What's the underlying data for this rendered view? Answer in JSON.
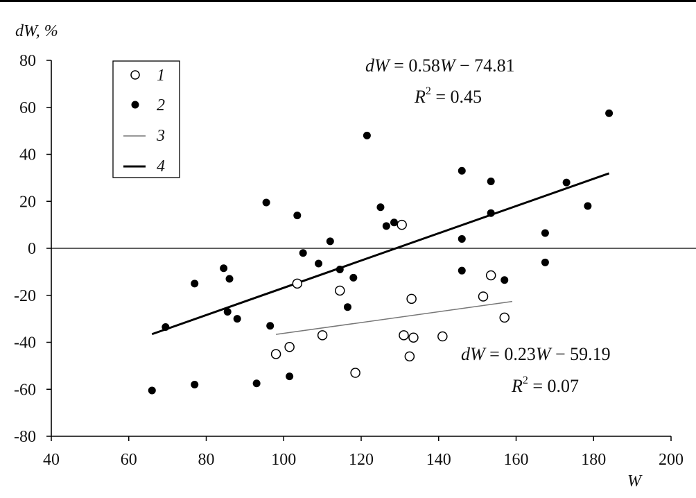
{
  "chart_data": {
    "type": "scatter",
    "xlabel": "W",
    "ylabel": "dW, %",
    "xlim": [
      40,
      200
    ],
    "ylim": [
      -80,
      80
    ],
    "x_ticks": [
      40,
      60,
      80,
      100,
      120,
      140,
      160,
      180,
      200
    ],
    "y_ticks": [
      -80,
      -60,
      -40,
      -20,
      0,
      20,
      40,
      60,
      80
    ],
    "grid": false,
    "legend_position": "top-left",
    "zero_line": true,
    "legend": [
      {
        "key": "1",
        "label": "1",
        "marker": "open-circle"
      },
      {
        "key": "2",
        "label": "2",
        "marker": "filled-circle"
      },
      {
        "key": "3",
        "label": "3",
        "marker": "thin-line"
      },
      {
        "key": "4",
        "label": "4",
        "marker": "thick-line"
      }
    ],
    "series": [
      {
        "name": "1",
        "marker": "open-circle",
        "points": [
          [
            98,
            -45
          ],
          [
            101.5,
            -42
          ],
          [
            103.5,
            -15
          ],
          [
            110,
            -37
          ],
          [
            114.5,
            -18
          ],
          [
            118.5,
            -53
          ],
          [
            130.5,
            10
          ],
          [
            131,
            -37
          ],
          [
            132.5,
            -46
          ],
          [
            133,
            -21.5
          ],
          [
            133.5,
            -38
          ],
          [
            141,
            -37.5
          ],
          [
            151.5,
            -20.5
          ],
          [
            153.5,
            -11.5
          ],
          [
            157,
            -29.5
          ]
        ]
      },
      {
        "name": "2",
        "marker": "filled-circle",
        "points": [
          [
            66,
            -60.5
          ],
          [
            69.5,
            -33.5
          ],
          [
            77,
            -15
          ],
          [
            77,
            -58
          ],
          [
            84.5,
            -8.5
          ],
          [
            85.5,
            -27
          ],
          [
            86,
            -13
          ],
          [
            88,
            -30
          ],
          [
            93,
            -57.5
          ],
          [
            95.5,
            19.5
          ],
          [
            96.5,
            -33
          ],
          [
            101.5,
            -54.5
          ],
          [
            103.5,
            14
          ],
          [
            105,
            -2
          ],
          [
            109,
            -6.5
          ],
          [
            112,
            3
          ],
          [
            114.5,
            -9
          ],
          [
            116.5,
            -25
          ],
          [
            118,
            -12.5
          ],
          [
            121.5,
            48
          ],
          [
            125,
            17.5
          ],
          [
            126.5,
            9.5
          ],
          [
            128.5,
            11
          ],
          [
            146,
            33
          ],
          [
            146,
            4
          ],
          [
            146,
            -9.5
          ],
          [
            153.5,
            28.5
          ],
          [
            153.5,
            15
          ],
          [
            157,
            -13.5
          ],
          [
            167.5,
            6.5
          ],
          [
            167.5,
            -6
          ],
          [
            173,
            28
          ],
          [
            178.5,
            18
          ],
          [
            184,
            57.5
          ]
        ]
      },
      {
        "name": "3",
        "type": "line",
        "style": "thin",
        "color": "#777777",
        "x": [
          98,
          159
        ],
        "y": [
          -36.65,
          -22.62
        ]
      },
      {
        "name": "4",
        "type": "line",
        "style": "thick",
        "color": "#000000",
        "x": [
          66,
          184
        ],
        "y": [
          -36.53,
          31.91
        ]
      }
    ],
    "annotations": [
      {
        "lhs_var": "dW",
        "eq": " = 0.58",
        "rhs_var": "W",
        "rest": " − 74.81",
        "r2_lhs": "R",
        "r2_exp": "2",
        "r2_rhs": " = 0.45"
      },
      {
        "lhs_var": "dW",
        "eq": " = 0.23",
        "rhs_var": "W",
        "rest": " − 59.19",
        "r2_lhs": "R",
        "r2_exp": "2",
        "r2_rhs": " = 0.07"
      }
    ]
  }
}
